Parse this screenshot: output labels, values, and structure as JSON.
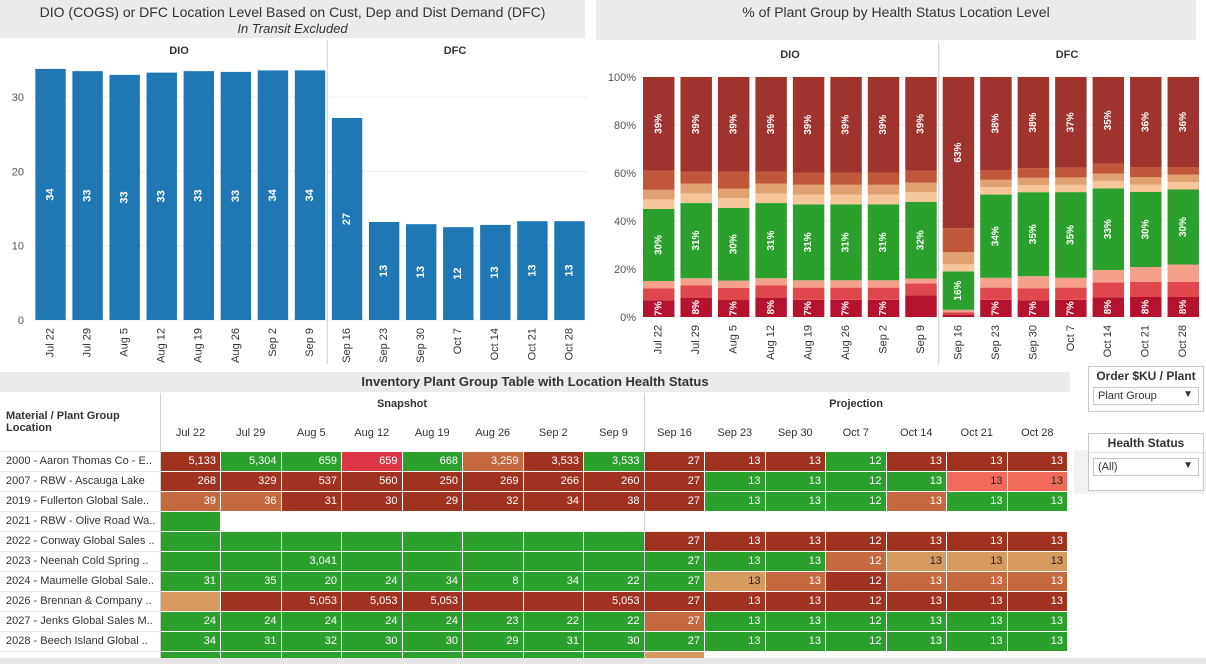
{
  "left_chart": {
    "title": "DIO (COGS) or DFC Location Level Based on Cust, Dep and Dist Demand (DFC)",
    "subtitle": "In Transit Excluded",
    "panels": [
      "DIO",
      "DFC"
    ],
    "color": "#1f77b4"
  },
  "right_chart": {
    "title": "% of Plant Group by Health Status Location Level",
    "panels": [
      "DIO",
      "DFC"
    ]
  },
  "chart_data": [
    {
      "type": "bar",
      "categories": [
        "Jul 22",
        "Jul 29",
        "Aug 5",
        "Aug 12",
        "Aug 19",
        "Aug 26",
        "Sep 2",
        "Sep 9",
        "Sep 16",
        "Sep 23",
        "Sep 30",
        "Oct 7",
        "Oct 14",
        "Oct 21",
        "Oct 28"
      ],
      "values": [
        33.8,
        33.5,
        33.0,
        33.3,
        33.5,
        33.4,
        33.6,
        33.6,
        27.2,
        13.2,
        12.9,
        12.5,
        12.8,
        13.3,
        13.3
      ],
      "labels": [
        "34",
        "33",
        "33",
        "33",
        "33",
        "33",
        "34",
        "34",
        "27",
        "13",
        "13",
        "12",
        "13",
        "13",
        "13"
      ],
      "panel_split": 8,
      "ylim": [
        0,
        35
      ],
      "yticks": [
        0,
        10,
        20,
        30
      ]
    },
    {
      "type": "bar",
      "stacked": true,
      "categories": [
        "Jul 22",
        "Jul 29",
        "Aug 5",
        "Aug 12",
        "Aug 19",
        "Aug 26",
        "Sep 2",
        "Sep 9",
        "Sep 16",
        "Sep 23",
        "Sep 30",
        "Oct 7",
        "Oct 14",
        "Oct 21",
        "Oct 28"
      ],
      "panel_split": 8,
      "yticks": [
        "0%",
        "20%",
        "40%",
        "60%",
        "80%",
        "100%"
      ],
      "segment_colors": [
        "#b5122f",
        "#e0474c",
        "#f4a08a",
        "#2ca02c",
        "#f6c59a",
        "#e0a070",
        "#c0573a",
        "#9e342d"
      ],
      "series": [
        {
          "values": [
            7,
            8,
            7,
            8,
            7,
            7,
            7,
            9,
            1,
            7,
            7,
            7,
            8,
            8,
            8
          ],
          "labels": [
            "7%",
            "8%",
            "7%",
            "8%",
            "7%",
            "7%",
            "7%",
            "",
            "",
            "7%",
            "7%",
            "7%",
            "8%",
            "8%",
            "8%"
          ]
        },
        {
          "values": [
            5,
            5,
            5,
            5,
            5,
            5,
            5,
            5,
            1,
            5,
            5,
            5,
            6,
            6,
            6
          ],
          "labels": []
        },
        {
          "values": [
            3,
            3,
            3,
            3,
            3,
            3,
            3,
            2,
            1,
            4,
            5,
            4,
            5,
            6,
            7
          ],
          "labels": []
        },
        {
          "values": [
            30,
            31,
            30,
            31,
            31,
            31,
            31,
            32,
            16,
            34,
            35,
            35,
            33,
            30,
            30
          ],
          "labels": [
            "30%",
            "31%",
            "30%",
            "31%",
            "31%",
            "31%",
            "31%",
            "32%",
            "16%",
            "34%",
            "35%",
            "35%",
            "33%",
            "30%",
            "30%"
          ]
        },
        {
          "values": [
            4,
            4,
            4,
            4,
            4,
            4,
            4,
            4,
            3,
            3,
            3,
            3,
            3,
            3,
            3
          ],
          "labels": []
        },
        {
          "values": [
            4,
            4,
            4,
            4,
            4,
            4,
            4,
            4,
            5,
            3,
            3,
            3,
            3,
            3,
            3
          ],
          "labels": []
        },
        {
          "values": [
            8,
            5,
            7,
            5,
            5,
            5,
            5,
            5,
            10,
            4,
            4,
            4,
            4,
            4,
            3
          ],
          "labels": []
        },
        {
          "values": [
            39,
            39,
            39,
            39,
            39,
            39,
            39,
            39,
            63,
            38,
            38,
            37,
            35,
            36,
            36
          ],
          "labels": [
            "39%",
            "39%",
            "39%",
            "39%",
            "39%",
            "39%",
            "39%",
            "39%",
            "63%",
            "38%",
            "38%",
            "37%",
            "35%",
            "36%",
            "36%"
          ]
        }
      ]
    }
  ],
  "table": {
    "title": "Inventory Plant Group Table with Location Health Status",
    "row_header_1": "Material / Plant Group",
    "row_header_2": "Location",
    "group_snapshot": "Snapshot",
    "group_projection": "Projection",
    "dates": [
      "Jul 22",
      "Jul 29",
      "Aug 5",
      "Aug 12",
      "Aug 19",
      "Aug 26",
      "Sep 2",
      "Sep 9",
      "Sep 16",
      "Sep 23",
      "Sep 30",
      "Oct 7",
      "Oct 14",
      "Oct 21",
      "Oct 28"
    ],
    "rows": [
      {
        "label": "2000 - Aaron Thomas Co - E..",
        "cells": [
          [
            "5,133",
            "R"
          ],
          [
            "5,304",
            "G"
          ],
          [
            "659",
            "G"
          ],
          [
            "659",
            "RB"
          ],
          [
            "668",
            "G"
          ],
          [
            "3,259",
            "O"
          ],
          [
            "3,533",
            "R"
          ],
          [
            "3,533",
            "G"
          ],
          [
            "27",
            "R"
          ],
          [
            "13",
            "R"
          ],
          [
            "13",
            "R"
          ],
          [
            "12",
            "G"
          ],
          [
            "13",
            "R"
          ],
          [
            "13",
            "R"
          ],
          [
            "13",
            "R"
          ]
        ]
      },
      {
        "label": "2007 - RBW - Ascauga Lake",
        "cells": [
          [
            "268",
            "R"
          ],
          [
            "329",
            "R"
          ],
          [
            "537",
            "R"
          ],
          [
            "560",
            "R"
          ],
          [
            "250",
            "R"
          ],
          [
            "269",
            "R"
          ],
          [
            "266",
            "R"
          ],
          [
            "260",
            "R"
          ],
          [
            "27",
            "R"
          ],
          [
            "13",
            "G"
          ],
          [
            "13",
            "G"
          ],
          [
            "12",
            "G"
          ],
          [
            "13",
            "G"
          ],
          [
            "13",
            "P"
          ],
          [
            "13",
            "P"
          ]
        ]
      },
      {
        "label": "2019 - Fullerton Global Sale..",
        "cells": [
          [
            "39",
            "O"
          ],
          [
            "36",
            "O"
          ],
          [
            "31",
            "R"
          ],
          [
            "30",
            "R"
          ],
          [
            "29",
            "R"
          ],
          [
            "32",
            "R"
          ],
          [
            "34",
            "R"
          ],
          [
            "38",
            "R"
          ],
          [
            "27",
            "R"
          ],
          [
            "13",
            "G"
          ],
          [
            "13",
            "G"
          ],
          [
            "12",
            "G"
          ],
          [
            "13",
            "O"
          ],
          [
            "13",
            "G"
          ],
          [
            "13",
            "G"
          ]
        ]
      },
      {
        "label": "2021 - RBW - Olive Road Wa..",
        "cells": [
          [
            "",
            "G"
          ],
          [
            "",
            "W"
          ],
          [
            "",
            "W"
          ],
          [
            "",
            "W"
          ],
          [
            "",
            "W"
          ],
          [
            "",
            "W"
          ],
          [
            "",
            "W"
          ],
          [
            "",
            "W"
          ],
          [
            "",
            "W"
          ],
          [
            "",
            "W"
          ],
          [
            "",
            "W"
          ],
          [
            "",
            "W"
          ],
          [
            "",
            "W"
          ],
          [
            "",
            "W"
          ],
          [
            "",
            "W"
          ]
        ]
      },
      {
        "label": "2022 - Conway Global Sales ..",
        "cells": [
          [
            "",
            "G"
          ],
          [
            "",
            "G"
          ],
          [
            "",
            "G"
          ],
          [
            "",
            "G"
          ],
          [
            "",
            "G"
          ],
          [
            "",
            "G"
          ],
          [
            "",
            "G"
          ],
          [
            "",
            "G"
          ],
          [
            "27",
            "R"
          ],
          [
            "13",
            "R"
          ],
          [
            "13",
            "R"
          ],
          [
            "12",
            "R"
          ],
          [
            "13",
            "R"
          ],
          [
            "13",
            "R"
          ],
          [
            "13",
            "R"
          ]
        ]
      },
      {
        "label": "2023 - Neenah Cold Spring ..",
        "cells": [
          [
            "",
            "G"
          ],
          [
            "",
            "G"
          ],
          [
            "3,041",
            "G"
          ],
          [
            "",
            "G"
          ],
          [
            "",
            "G"
          ],
          [
            "",
            "G"
          ],
          [
            "",
            "G"
          ],
          [
            "",
            "G"
          ],
          [
            "27",
            "G"
          ],
          [
            "13",
            "G"
          ],
          [
            "13",
            "G"
          ],
          [
            "12",
            "O"
          ],
          [
            "13",
            "L"
          ],
          [
            "13",
            "L"
          ],
          [
            "13",
            "L"
          ]
        ]
      },
      {
        "label": "2024 - Maumelle Global Sale..",
        "cells": [
          [
            "31",
            "G"
          ],
          [
            "35",
            "G"
          ],
          [
            "20",
            "G"
          ],
          [
            "24",
            "G"
          ],
          [
            "34",
            "G"
          ],
          [
            "8",
            "G"
          ],
          [
            "34",
            "G"
          ],
          [
            "22",
            "G"
          ],
          [
            "27",
            "G"
          ],
          [
            "13",
            "L"
          ],
          [
            "13",
            "O"
          ],
          [
            "12",
            "R"
          ],
          [
            "13",
            "O"
          ],
          [
            "13",
            "O"
          ],
          [
            "13",
            "O"
          ]
        ]
      },
      {
        "label": "2026 - Brennan & Company ..",
        "cells": [
          [
            "",
            "L"
          ],
          [
            "",
            "R"
          ],
          [
            "5,053",
            "R"
          ],
          [
            "5,053",
            "R"
          ],
          [
            "5,053",
            "R"
          ],
          [
            "",
            "R"
          ],
          [
            "",
            "R"
          ],
          [
            "5,053",
            "R"
          ],
          [
            "27",
            "R"
          ],
          [
            "13",
            "R"
          ],
          [
            "13",
            "R"
          ],
          [
            "12",
            "R"
          ],
          [
            "13",
            "R"
          ],
          [
            "13",
            "R"
          ],
          [
            "13",
            "R"
          ]
        ]
      },
      {
        "label": "2027 - Jenks Global Sales M..",
        "cells": [
          [
            "24",
            "G"
          ],
          [
            "24",
            "G"
          ],
          [
            "24",
            "G"
          ],
          [
            "24",
            "G"
          ],
          [
            "24",
            "G"
          ],
          [
            "23",
            "G"
          ],
          [
            "22",
            "G"
          ],
          [
            "22",
            "G"
          ],
          [
            "27",
            "O"
          ],
          [
            "13",
            "G"
          ],
          [
            "13",
            "G"
          ],
          [
            "12",
            "G"
          ],
          [
            "13",
            "G"
          ],
          [
            "13",
            "G"
          ],
          [
            "13",
            "G"
          ]
        ]
      },
      {
        "label": "2028 - Beech Island Global ..",
        "cells": [
          [
            "34",
            "G"
          ],
          [
            "31",
            "G"
          ],
          [
            "32",
            "G"
          ],
          [
            "30",
            "G"
          ],
          [
            "30",
            "G"
          ],
          [
            "29",
            "G"
          ],
          [
            "31",
            "G"
          ],
          [
            "30",
            "G"
          ],
          [
            "27",
            "G"
          ],
          [
            "13",
            "G"
          ],
          [
            "13",
            "G"
          ],
          [
            "12",
            "G"
          ],
          [
            "13",
            "G"
          ],
          [
            "13",
            "G"
          ],
          [
            "13",
            "G"
          ]
        ]
      },
      {
        "label": "",
        "cells": [
          [
            "",
            "G"
          ],
          [
            "",
            "G"
          ],
          [
            "",
            "G"
          ],
          [
            "",
            "G"
          ],
          [
            "",
            "G"
          ],
          [
            "",
            "G"
          ],
          [
            "",
            "G"
          ],
          [
            "",
            "G"
          ],
          [
            "",
            "L"
          ],
          [
            "",
            "W"
          ],
          [
            "",
            "W"
          ],
          [
            "",
            "W"
          ],
          [
            "",
            "W"
          ],
          [
            "",
            "W"
          ],
          [
            "",
            "W"
          ]
        ]
      }
    ],
    "colors": {
      "R": "#a0331f",
      "G": "#2ca02c",
      "O": "#c46a3e",
      "L": "#d79a5f",
      "P": "#f06b5a",
      "RB": "#dc3545",
      "W": "#ffffff"
    }
  },
  "filters": {
    "order_title": "Order $KU / Plant",
    "order_value": "Plant Group",
    "health_title": "Health Status",
    "health_value": "(All)"
  }
}
